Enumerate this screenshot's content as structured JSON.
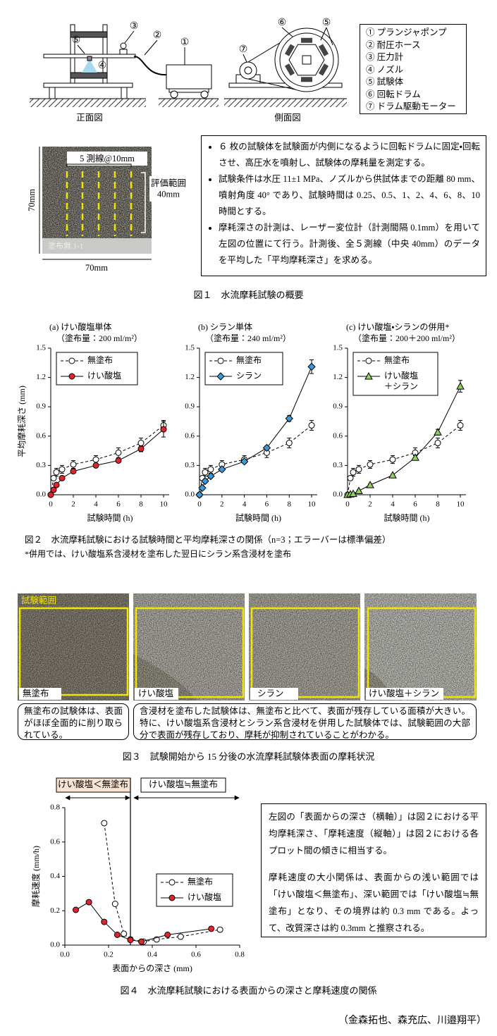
{
  "figure1": {
    "callouts_front": [
      "③",
      "②",
      "①",
      "⑤",
      "④"
    ],
    "callouts_side": [
      "⑥",
      "⑤",
      "⑦"
    ],
    "front_label": "正面図",
    "side_label": "側面図",
    "legend": [
      "① プランジャポンプ",
      "② 耐圧ホース",
      "③ 圧力計",
      "④ ノズル",
      "⑤ 試験体",
      "⑥ 回転ドラム",
      "⑦ ドラム駆動モーター"
    ],
    "specimen": {
      "lines_label": "5 測線@10mm",
      "range_label": "評価範囲\n40mm",
      "height": "70mm",
      "width": "70mm",
      "tag": "塗布無.1-1"
    },
    "notes": [
      "６ 枚の試験体を試験面が内側になるように回転ドラムに固定・回転させ、高圧水を噴射し、試験体の摩耗量を測定する。",
      "試験条件は水圧 11±1 MPa、ノズルから供試体までの距離 80 mm、噴射角度 40° であり、試験時間は 0.25、0.5、1、2、4、6、8、10 時間とする。",
      "摩耗深さの計測は、レーザー変位計（計測間隔 0.1mm）を用いて左図の位置にて行う。計測後、全５測線（中央 40mm）のデータを平均した「平均摩耗深さ」を求める。"
    ],
    "caption": "図１　水流摩耗試験の概要"
  },
  "chart_data": [
    {
      "type": "line",
      "title": "(a) けい酸塩単体",
      "subtitle": "（塗布量：200 ml/m²）",
      "x_label": "試験時間 (h)",
      "y_label": "平均摩耗深さ (mm)",
      "x": [
        0,
        0.25,
        0.5,
        1,
        2,
        4,
        6,
        8,
        10
      ],
      "xlim": [
        0,
        10.5
      ],
      "xticks": [
        0,
        2,
        4,
        6,
        8,
        10
      ],
      "ylim": [
        0,
        1.5
      ],
      "yticks": [
        {
          "value": 0,
          "label": "0.0"
        },
        0.3,
        0.6,
        0.9,
        1.2,
        1.5
      ],
      "legend": "upper left",
      "series": [
        {
          "name": "無塗布",
          "color": "#ffffff",
          "marker": "circle",
          "dashed": true,
          "values": [
            0,
            0.17,
            0.23,
            0.26,
            0.31,
            0.36,
            0.43,
            0.53,
            0.71
          ],
          "errors": [
            0,
            0.02,
            0.04,
            0.04,
            0.04,
            0.04,
            0.05,
            0.05,
            0.05
          ]
        },
        {
          "name": "けい酸塩",
          "color": "#e3232b",
          "marker": "circle",
          "dashed": false,
          "values": [
            0,
            0.05,
            0.1,
            0.17,
            0.24,
            0.3,
            0.35,
            0.47,
            0.67
          ],
          "errors": [
            0,
            0.01,
            0.02,
            0.02,
            0.02,
            0.02,
            0.02,
            0.03,
            0.08
          ]
        }
      ]
    },
    {
      "type": "line",
      "title": "(b) シラン単体",
      "subtitle": "（塗布量：240 ml/m²）",
      "x_label": "試験時間 (h)",
      "x": [
        0,
        0.25,
        0.5,
        1,
        2,
        4,
        6,
        8,
        10
      ],
      "xlim": [
        0,
        10.5
      ],
      "xticks": [
        0,
        2,
        4,
        6,
        8,
        10
      ],
      "ylim": [
        0,
        1.5
      ],
      "yticks": [
        {
          "value": 0,
          "label": "0.0"
        },
        0.3,
        0.6,
        0.9,
        1.2,
        1.5
      ],
      "legend": "upper left",
      "series": [
        {
          "name": "無塗布",
          "color": "#ffffff",
          "marker": "circle",
          "dashed": true,
          "values": [
            0,
            0.17,
            0.23,
            0.26,
            0.31,
            0.36,
            0.43,
            0.53,
            0.71
          ],
          "errors": [
            0,
            0.02,
            0.04,
            0.04,
            0.04,
            0.04,
            0.05,
            0.05,
            0.05
          ]
        },
        {
          "name": "シラン",
          "color": "#3a9ad9",
          "marker": "diamond",
          "dashed": false,
          "values": [
            0,
            0.07,
            0.14,
            0.19,
            0.26,
            0.34,
            0.48,
            0.78,
            1.31
          ],
          "errors": [
            0,
            0.02,
            0.02,
            0.02,
            0.02,
            0.02,
            0.02,
            0.03,
            0.07
          ]
        }
      ]
    },
    {
      "type": "line",
      "title": "(c) けい酸塩・シランの併用*",
      "subtitle": "（塗布量：200＋200 ml/m²）",
      "x_label": "試験時間 (h)",
      "x": [
        0,
        0.25,
        0.5,
        1,
        2,
        4,
        6,
        8,
        10
      ],
      "xlim": [
        0,
        10.5
      ],
      "xticks": [
        0,
        2,
        4,
        6,
        8,
        10
      ],
      "ylim": [
        0,
        1.5
      ],
      "yticks": [
        {
          "value": 0,
          "label": "0.0"
        },
        0.3,
        0.6,
        0.9,
        1.2,
        1.5
      ],
      "legend": "upper left",
      "series": [
        {
          "name": "無塗布",
          "color": "#ffffff",
          "marker": "circle",
          "dashed": true,
          "values": [
            0,
            0.17,
            0.23,
            0.26,
            0.31,
            0.36,
            0.43,
            0.53,
            0.71
          ],
          "errors": [
            0,
            0.02,
            0.04,
            0.04,
            0.04,
            0.04,
            0.05,
            0.05,
            0.05
          ]
        },
        {
          "name": "けい酸塩\n＋シラン",
          "color": "#8fd15e",
          "marker": "triangle",
          "dashed": false,
          "values": [
            0,
            0.005,
            0.01,
            0.04,
            0.1,
            0.2,
            0.38,
            0.64,
            1.11
          ],
          "errors": [
            0,
            0,
            0,
            0.01,
            0.01,
            0.01,
            0.02,
            0.03,
            0.06
          ]
        }
      ]
    },
    {
      "type": "line",
      "x_label": "表面からの深さ (mm)",
      "y_label": "摩耗速度 (mm/h)",
      "xlim": [
        0,
        0.8
      ],
      "xticks": [
        {
          "value": 0,
          "label": "0.0"
        },
        0.2,
        0.4,
        0.6,
        0.8
      ],
      "ylim": [
        0,
        0.8
      ],
      "yticks": [
        {
          "value": 0,
          "label": "0.0"
        },
        0.2,
        0.4,
        0.6,
        0.8
      ],
      "legend": "center right",
      "vline": 0.3,
      "series": [
        {
          "name": "無塗布",
          "color": "#ffffff",
          "marker": "circle",
          "dashed": true,
          "x": [
            0.18,
            0.23,
            0.27,
            0.3,
            0.36,
            0.42,
            0.53,
            0.71
          ],
          "values": [
            0.71,
            0.24,
            0.066,
            0.033,
            0.02,
            0.033,
            0.049,
            0.09
          ]
        },
        {
          "name": "けい酸塩",
          "color": "#e3232b",
          "marker": "circle",
          "dashed": false,
          "x": [
            0.05,
            0.11,
            0.18,
            0.24,
            0.3,
            0.35,
            0.47,
            0.67
          ],
          "values": [
            0.205,
            0.25,
            0.135,
            0.06,
            0.03,
            0.02,
            0.06,
            0.095
          ]
        }
      ]
    }
  ],
  "figure2": {
    "caption": "図２　水流摩耗試験における試験時間と平均摩耗深さの関係（n=3；エラーバーは標準偏差）",
    "footnote": "*併用では、けい酸塩系含浸材を塗布した翌日にシラン系含浸材を塗布"
  },
  "figure3": {
    "range_label": "試験範囲",
    "photos": [
      "無塗布",
      "けい酸塩",
      "シラン",
      "けい酸塩＋シラン"
    ],
    "notes": [
      "無塗布の試験体は、表面がほぼ全面的に削り取られている。",
      "含浸材を塗布した試験体は、無塗布と比べて、表面が残存している面積が大きい。特に、けい酸塩系含浸材とシラン系含浸材を併用した試験体では、試験範囲の大部分で表面が残存しており、摩耗が抑制されていることがわかる。"
    ],
    "caption": "図３　試験開始から 15 分後の水流摩耗試験体表面の摩耗状況"
  },
  "figure4": {
    "annotations": [
      "けい酸塩＜無塗布",
      "けい酸塩≒無塗布"
    ],
    "notes": [
      "左図の「表面からの深さ（横軸）」は図２における平均摩耗深さ、「摩耗速度（縦軸）」は図２における各プロット間の傾きに相当する。",
      "摩耗速度の大小関係は、表面からの浅い範囲では「けい酸塩＜無塗布」、深い範囲では「けい酸塩≒無塗布」となり、その境界は約 0.3 mm である。よって、改質深さは約 0.3mm と推察される。"
    ],
    "caption": "図４　水流摩耗試験における表面からの深さと摩耗速度の関係"
  },
  "authors": "（金森拓也、森充広、川邉翔平）"
}
